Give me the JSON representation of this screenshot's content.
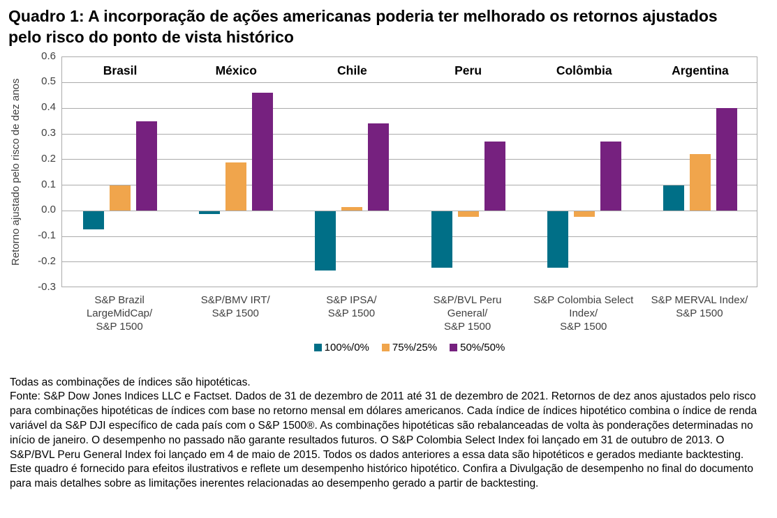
{
  "title": "Quadro 1: A incorporação de ações americanas poderia ter melhorado os retornos ajustados pelo risco do ponto de vista histórico",
  "chart_data": {
    "type": "bar",
    "title": "Quadro 1: A incorporação de ações americanas poderia ter melhorado os retornos ajustados pelo risco do ponto de vista histórico",
    "xlabel": "",
    "ylabel": "Retorno ajustado pelo risco de dez anos",
    "ylim": [
      -0.3,
      0.6
    ],
    "ytick_labels": [
      "0.6",
      "0.5",
      "0.4",
      "0.3",
      "0.2",
      "0.1",
      "0.0",
      "-0.1",
      "-0.2",
      "-0.3"
    ],
    "grid": true,
    "legend_position": "bottom",
    "categories": [
      "Brasil",
      "México",
      "Chile",
      "Peru",
      "Colômbia",
      "Argentina"
    ],
    "category_axis_labels": [
      "S&P Brazil\nLargeMidCap/\nS&P 1500",
      "S&P/BMV IRT/\nS&P 1500",
      "S&P IPSA/\nS&P 1500",
      "S&P/BVL Peru\nGeneral/\nS&P 1500",
      "S&P Colombia Select\nIndex/\nS&P 1500",
      "S&P MERVAL Index/\nS&P 1500"
    ],
    "series": [
      {
        "name": "100%/0%",
        "color": "#006F87",
        "values": [
          -0.07,
          -0.01,
          -0.23,
          -0.22,
          -0.22,
          0.1
        ]
      },
      {
        "name": "75%/25%",
        "color": "#F0A54C",
        "values": [
          0.1,
          0.19,
          0.015,
          -0.02,
          -0.02,
          0.22
        ]
      },
      {
        "name": "50%/50%",
        "color": "#76217F",
        "values": [
          0.35,
          0.46,
          0.34,
          0.27,
          0.27,
          0.4
        ]
      }
    ]
  },
  "footnote": {
    "line1": "Todas as combinações de índices são hipotéticas.",
    "source": "Fonte: S&P Dow Jones Indices LLC e Factset. Dados de 31 de dezembro de 2011 até 31 de dezembro de 2021. Retornos de dez anos ajustados pelo risco para combinações hipotéticas de índices com base no retorno mensal em dólares americanos. Cada índice de índices hipotético combina o índice de renda variável da S&P DJI específico de cada país com o S&P 1500®. As combinações hipotéticas são rebalanceadas de volta às ponderações determinadas no início de janeiro. O desempenho no passado não garante resultados futuros. O S&P Colombia Select Index foi lançado em 31 de outubro de 2013. O S&P/BVL Peru General Index foi lançado em 4 de maio de 2015. Todos os dados anteriores a essa data são hipotéticos e gerados mediante backtesting. Este quadro é fornecido para efeitos ilustrativos e reflete um desempenho histórico hipotético. Confira a Divulgação de desempenho no final do documento para mais detalhes sobre as limitações inerentes relacionadas ao desempenho gerado a partir de backtesting."
  }
}
